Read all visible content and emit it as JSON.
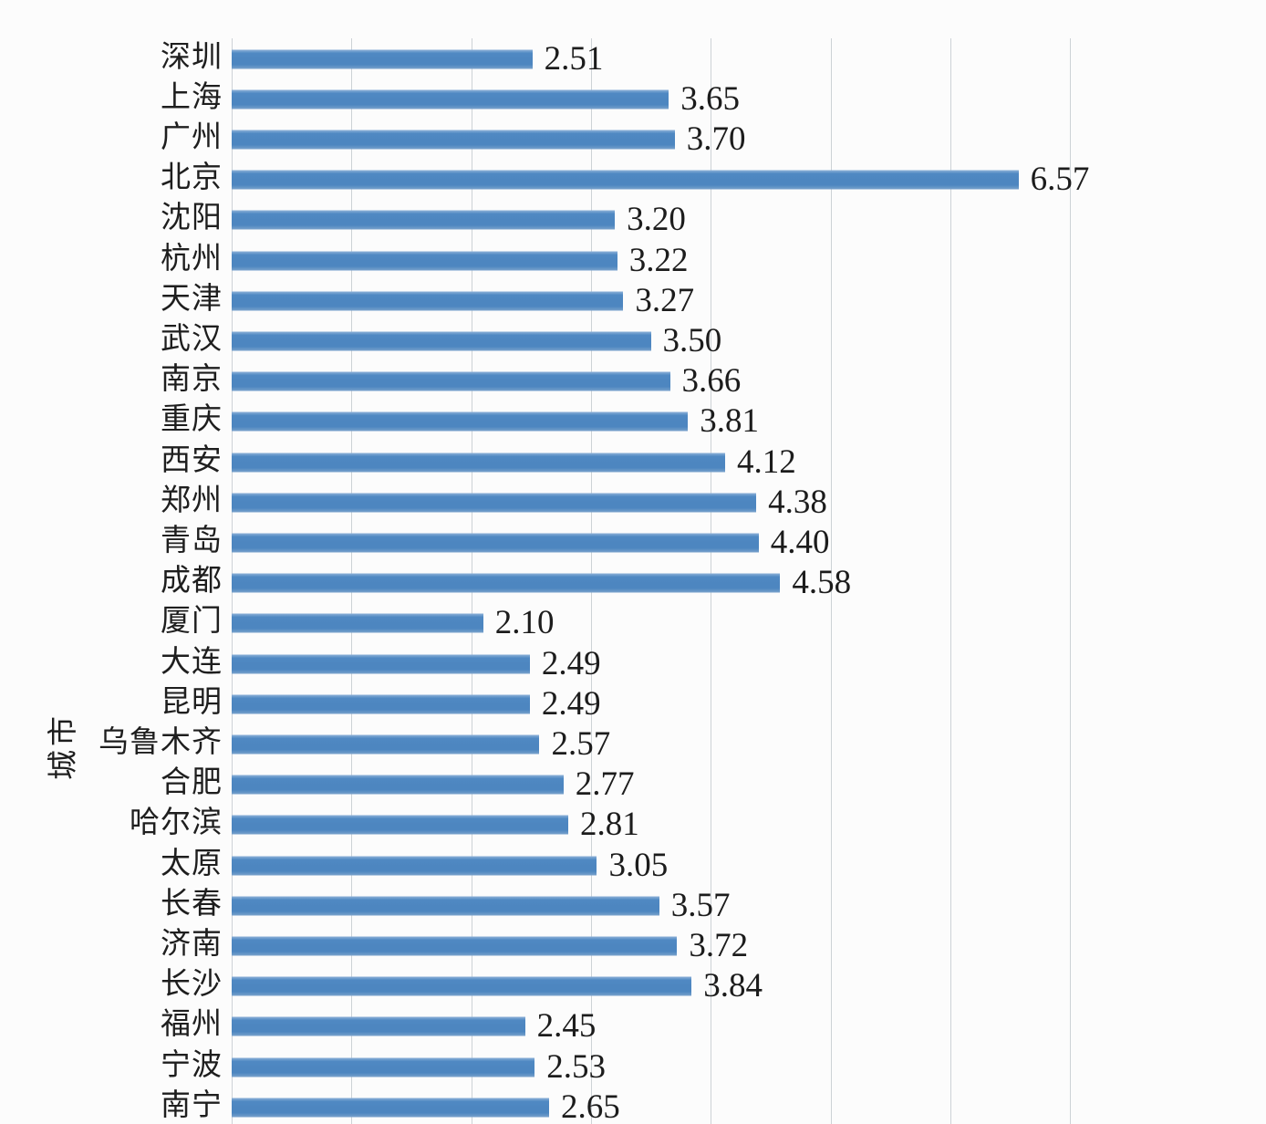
{
  "chart_data": {
    "type": "bar",
    "orientation": "horizontal",
    "title": "",
    "xlabel": "",
    "ylabel": "城市",
    "xlim": [
      0,
      7
    ],
    "grid": true,
    "gridline_values": [
      0,
      1,
      2,
      3,
      4,
      5,
      6,
      7
    ],
    "bar_color": "#4d86c0",
    "categories": [
      "深圳",
      "上海",
      "广州",
      "北京",
      "沈阳",
      "杭州",
      "天津",
      "武汉",
      "南京",
      "重庆",
      "西安",
      "郑州",
      "青岛",
      "成都",
      "厦门",
      "大连",
      "昆明",
      "乌鲁木齐",
      "合肥",
      "哈尔滨",
      "太原",
      "长春",
      "济南",
      "长沙",
      "福州",
      "宁波",
      "南宁"
    ],
    "values": [
      2.51,
      3.65,
      3.7,
      6.57,
      3.2,
      3.22,
      3.27,
      3.5,
      3.66,
      3.81,
      4.12,
      4.38,
      4.4,
      4.58,
      2.1,
      2.49,
      2.49,
      2.57,
      2.77,
      2.81,
      3.05,
      3.57,
      3.72,
      3.84,
      2.45,
      2.53,
      2.65
    ],
    "value_labels": [
      "2.51",
      "3.65",
      "3.70",
      "6.57",
      "3.20",
      "3.22",
      "3.27",
      "3.50",
      "3.66",
      "3.81",
      "4.12",
      "4.38",
      "4.40",
      "4.58",
      "2.10",
      "2.49",
      "2.49",
      "2.57",
      "2.77",
      "2.81",
      "3.05",
      "3.57",
      "3.72",
      "3.84",
      "2.45",
      "2.53",
      "2.65"
    ]
  }
}
